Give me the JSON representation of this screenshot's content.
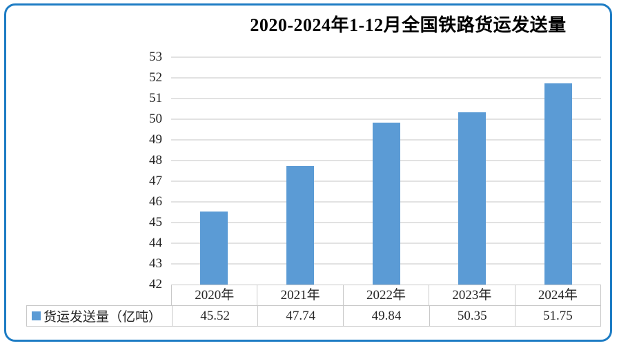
{
  "frame": {
    "border_color": "#1d7cc4"
  },
  "chart_data": {
    "type": "bar",
    "title": "2020-2024年1-12月全国铁路货运发送量",
    "categories": [
      "2020年",
      "2021年",
      "2022年",
      "2023年",
      "2024年"
    ],
    "series": [
      {
        "name": "货运发送量（亿吨）",
        "values": [
          45.52,
          47.74,
          49.84,
          50.35,
          51.75
        ],
        "color": "#5b9bd5"
      }
    ],
    "xlabel": "",
    "ylabel": "",
    "ylim": [
      42,
      53
    ],
    "yticks": [
      42,
      43,
      44,
      45,
      46,
      47,
      48,
      49,
      50,
      51,
      52,
      53
    ],
    "grid": true,
    "gridline_color": "#e2e2e2",
    "legend_position": "data-table-left",
    "value_decimals": 2,
    "data_table_shown": true
  }
}
